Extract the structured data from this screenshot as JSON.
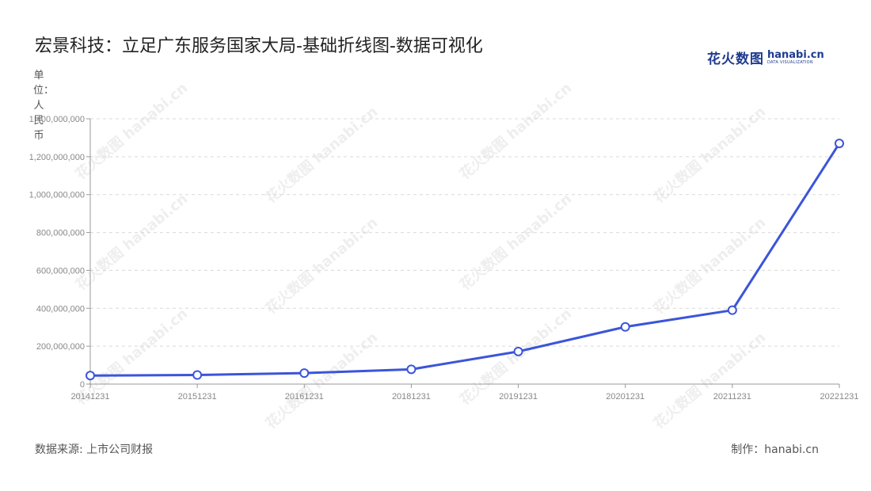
{
  "title": "宏景科技：立足广东服务国家大局-基础折线图-数据可视化",
  "logo": {
    "cn": "花火数图",
    "en_main": "hanabi.cn",
    "en_sub": "DATA VISUALIZATION"
  },
  "unit_label": "单位：人民币",
  "source": "数据来源: 上市公司财报",
  "credit": "制作：hanabi.cn",
  "watermark": "花火数图 hanabi.cn",
  "colors": {
    "line": "#3b55d9",
    "grid": "#d9d9d9",
    "axis_text": "#888888"
  },
  "chart_data": {
    "type": "line",
    "categories": [
      "20141231",
      "20151231",
      "20161231",
      "20181231",
      "20191231",
      "20201231",
      "20211231",
      "20221231"
    ],
    "series": [
      {
        "values": [
          45000000,
          48000000,
          58000000,
          78000000,
          172000000,
          302000000,
          390000000,
          1270000000
        ]
      }
    ],
    "ylim": [
      0,
      1400000000
    ],
    "yticks": [
      0,
      200000000,
      400000000,
      600000000,
      800000000,
      1000000000,
      1200000000,
      1400000000
    ],
    "ytick_labels": [
      "0",
      "200,000,000",
      "400,000,000",
      "600,000,000",
      "800,000,000",
      "1,000,000,000",
      "1,200,000,000",
      "1,400,000,000"
    ],
    "grid": true,
    "legend": "none"
  }
}
